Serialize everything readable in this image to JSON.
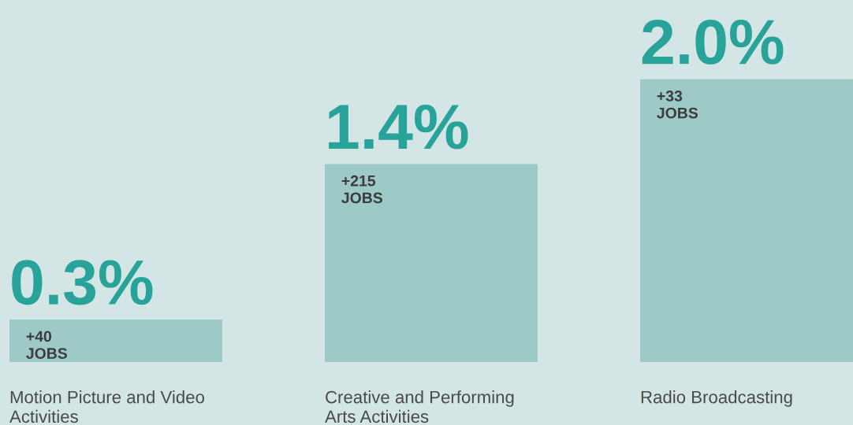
{
  "chart_data": {
    "type": "bar",
    "categories": [
      "Motion Picture and Video Activities",
      "Creative and Performing Arts Activities",
      "Radio Broadcasting"
    ],
    "values": [
      0.3,
      1.4,
      2.0
    ],
    "value_labels": [
      "0.3%",
      "1.4%",
      "2.0%"
    ],
    "color": "#9dc9c6",
    "annotations": [
      {
        "text": "+40 JOBS",
        "x": "Motion Picture and Video Activities",
        "y": 0.3
      },
      {
        "text": "+215 JOBS",
        "x": "Creative and Performing Arts Activities",
        "y": 1.4
      },
      {
        "text": "+33 JOBS",
        "x": "Radio Broadcasting",
        "y": 2.0
      }
    ],
    "data_labels": true
  }
}
